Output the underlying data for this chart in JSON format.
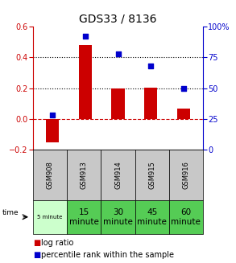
{
  "title": "GDS33 / 8136",
  "samples": [
    "GSM908",
    "GSM913",
    "GSM914",
    "GSM915",
    "GSM916"
  ],
  "time_labels": [
    "5 minute",
    "15\nminute",
    "30\nminute",
    "45\nminute",
    "60\nminute"
  ],
  "log_ratio": [
    -0.15,
    0.48,
    0.2,
    0.205,
    0.07
  ],
  "percentile": [
    28,
    92,
    78,
    68,
    50
  ],
  "left_ylim": [
    -0.2,
    0.6
  ],
  "right_ylim": [
    0,
    100
  ],
  "left_yticks": [
    -0.2,
    0.0,
    0.2,
    0.4,
    0.6
  ],
  "right_yticks": [
    0,
    25,
    50,
    75,
    100
  ],
  "right_yticklabels": [
    "0",
    "25",
    "50",
    "75",
    "100%"
  ],
  "bar_color": "#cc0000",
  "scatter_color": "#0000cc",
  "bg_color": "#ffffff",
  "hline_color": "#cc0000",
  "dotted_color": "#000000",
  "cell_bg_gray": "#c8c8c8",
  "cell_bg_green_light": "#ccffcc",
  "cell_bg_green_med": "#90ee90",
  "cell_bg_green": "#55cc55",
  "title_fontsize": 10,
  "tick_fontsize": 7,
  "sample_fontsize": 6,
  "time_fontsize": 7.5,
  "legend_fontsize": 7
}
